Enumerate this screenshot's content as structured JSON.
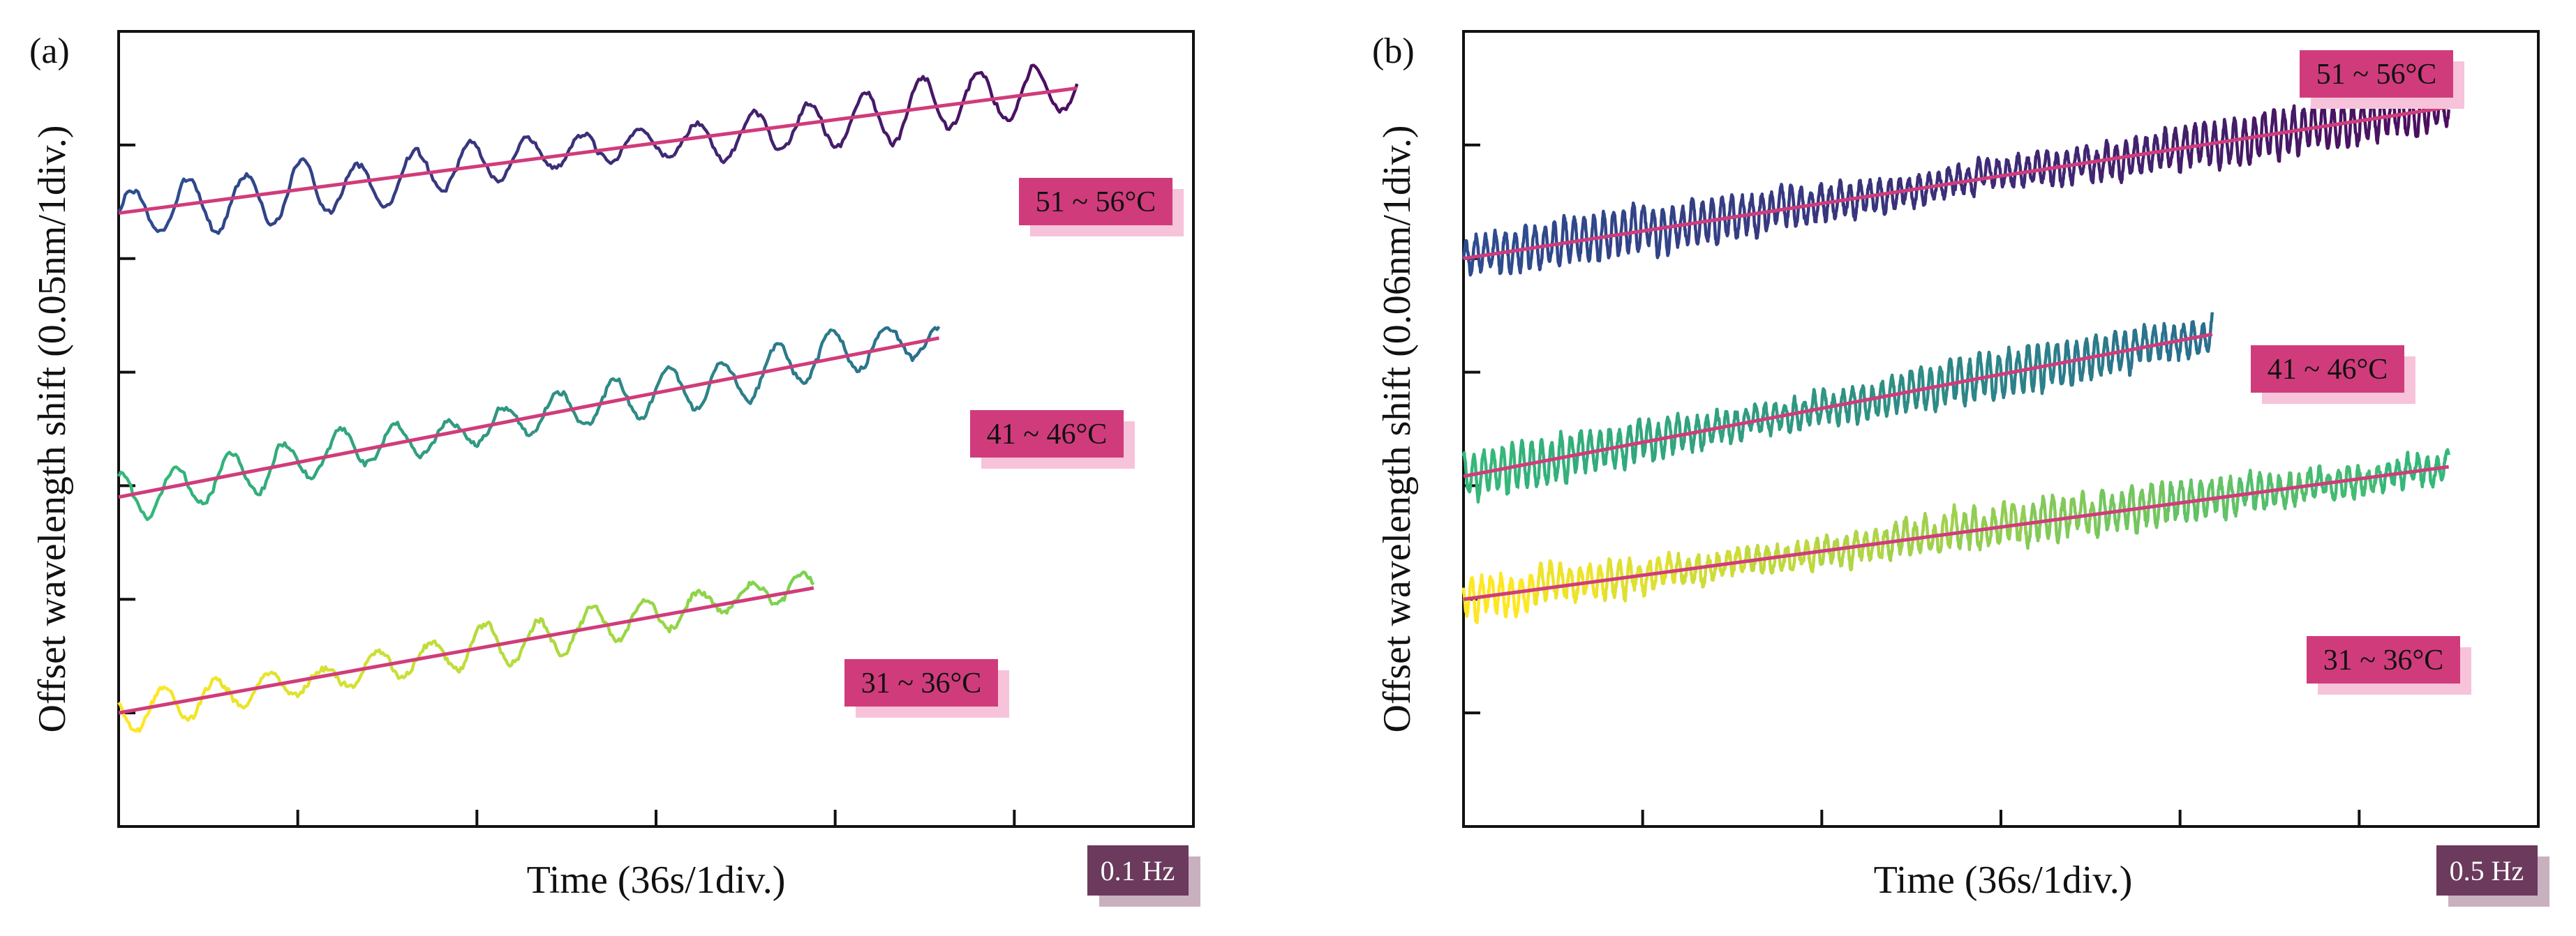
{
  "chart_data": [
    {
      "type": "line",
      "panel_label": "(a)",
      "xlabel": "Time (36s/1div.)",
      "ylabel": "Offset wavelength shift (0.05nm/1div.)",
      "xlim": [
        0,
        6
      ],
      "ylim": [
        -0.35,
        0.35
      ],
      "x_ticks": 5,
      "y_ticks": 6,
      "frequency_label": "0.1 Hz",
      "series": [
        {
          "name": "51 ~ 56°C",
          "x_start": 0,
          "x_end": 5.35,
          "fit_start": 0.19,
          "fit_end": 0.3,
          "amplitude": 0.019,
          "cycles": 17,
          "noise": 0.004,
          "color_start": "#2e4c8e",
          "color_end": "#4b0f5f"
        },
        {
          "name": "41 ~ 46°C",
          "x_start": 0,
          "x_end": 4.58,
          "fit_start": -0.06,
          "fit_end": 0.08,
          "amplitude": 0.017,
          "cycles": 15,
          "noise": 0.004,
          "color_start": "#35b779",
          "color_end": "#2a6f8e"
        },
        {
          "name": "31 ~ 36°C",
          "x_start": 0,
          "x_end": 3.88,
          "fit_start": -0.25,
          "fit_end": -0.14,
          "amplitude": 0.015,
          "cycles": 13,
          "noise": 0.004,
          "color_start": "#fde725",
          "color_end": "#7ad151"
        }
      ]
    },
    {
      "type": "line",
      "panel_label": "(b)",
      "xlabel": "Time (36s/1div.)",
      "ylabel": "Offset wavelength shift (0.06nm/1div.)",
      "xlim": [
        0,
        6
      ],
      "ylim": [
        -0.42,
        0.42
      ],
      "x_ticks": 5,
      "y_ticks": 6,
      "frequency_label": "0.5 Hz",
      "series": [
        {
          "name": "51 ~ 56°C",
          "x_start": 0,
          "x_end": 5.5,
          "fit_start": 0.18,
          "fit_end": 0.34,
          "amplitude": 0.018,
          "cycles": 100,
          "noise": 0.005,
          "color_start": "#2e4c8e",
          "color_end": "#4b0f5f"
        },
        {
          "name": "41 ~ 46°C",
          "x_start": 0,
          "x_end": 4.18,
          "fit_start": -0.05,
          "fit_end": 0.1,
          "amplitude": 0.018,
          "cycles": 77,
          "noise": 0.005,
          "color_start": "#35b779",
          "color_end": "#2a6f8e"
        },
        {
          "name": "31 ~ 36°C",
          "x_start": 0,
          "x_end": 5.5,
          "fit_start": -0.18,
          "fit_end": -0.04,
          "amplitude": 0.016,
          "cycles": 100,
          "noise": 0.006,
          "color_start": "#fde725",
          "color_end": "#35b779"
        }
      ]
    }
  ],
  "colors": {
    "fit_line": "#d03c7b",
    "badge_fill": "#d03c7b",
    "badge_shadow": "#f6c3da",
    "freq_fill": "#6b3a5c",
    "freq_shadow": "#c9b0bf",
    "axis": "#111111"
  }
}
